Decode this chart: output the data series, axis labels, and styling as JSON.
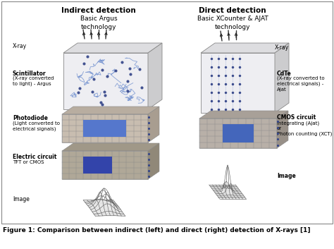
{
  "title": "Figure 1: Comparison between indirect (left) and direct (right) detection of X-rays [1]",
  "left_title1": "Indirect detection",
  "left_title2": "Basic Argus\ntechnology",
  "right_title1": "Direct detection",
  "right_title2": "Basic XCounter & AJAT\ntechnology",
  "fig_bg": "#f0f0f0",
  "box_bg": "#f0eeec",
  "box_top": "#dcdad8",
  "box_side": "#c8c6c4",
  "grid_bg": "#bfb8b0",
  "grid_line": "#999088",
  "blue_hi": "#4466bb",
  "elec_bg": "#b0a898",
  "elec_hi": "#3344aa",
  "caption_fontsize": 6.5,
  "label_fontsize": 5.5,
  "title_fontsize": 7.5
}
